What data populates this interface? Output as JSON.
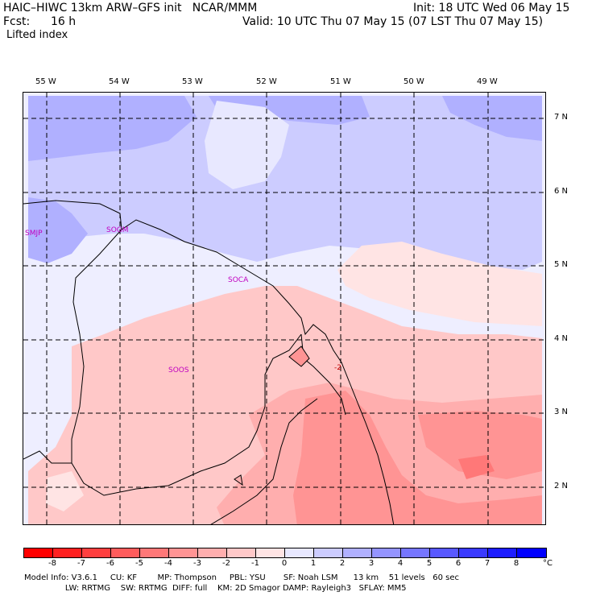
{
  "header": {
    "model_line": "HAIC–HIWC 13km ARW–GFS init   NCAR/MMM",
    "init_line": "Init: 18 UTC Wed 06 May 15",
    "fcst_label": "Fcst:",
    "fcst_value": "16 h",
    "valid_line": "Valid: 10 UTC Thu 07 May 15 (07 LST Thu 07 May 15)",
    "field": "Lifted index"
  },
  "longitudes": [
    "55 W",
    "54 W",
    "53 W",
    "52 W",
    "51 W",
    "50 W",
    "49 W"
  ],
  "latitudes": [
    "7 N",
    "6 N",
    "5 N",
    "4 N",
    "3 N",
    "2 N"
  ],
  "stations": [
    "SMJP",
    "SOGM",
    "SOCA",
    "SOOS"
  ],
  "contour_label": "-2",
  "colorbar": {
    "labels": [
      "-8",
      "-7",
      "-6",
      "-5",
      "-4",
      "-3",
      "-2",
      "-1",
      "0",
      "1",
      "2",
      "3",
      "4",
      "5",
      "6",
      "7",
      "8"
    ],
    "unit": "°C",
    "colors": [
      "#ff0000",
      "#ff2020",
      "#ff3f3f",
      "#ff5c5c",
      "#ff7878",
      "#ff9494",
      "#ffaeae",
      "#ffc8c8",
      "#ffe4e4",
      "#e8e8ff",
      "#ccccff",
      "#b0b0ff",
      "#9494ff",
      "#7676ff",
      "#5858ff",
      "#3a3aff",
      "#1c1cff",
      "#0000ff"
    ]
  },
  "footer": {
    "line1": "Model Info: V3.6.1     CU: KF        MP: Thompson     PBL: YSU       SF: Noah LSM      13 km    51 levels   60 sec",
    "line2": "                LW: RRTMG    SW: RRTMG  DIFF: full    KM: 2D Smagor DAMP: Rayleigh3   SFLAY: MM5"
  }
}
